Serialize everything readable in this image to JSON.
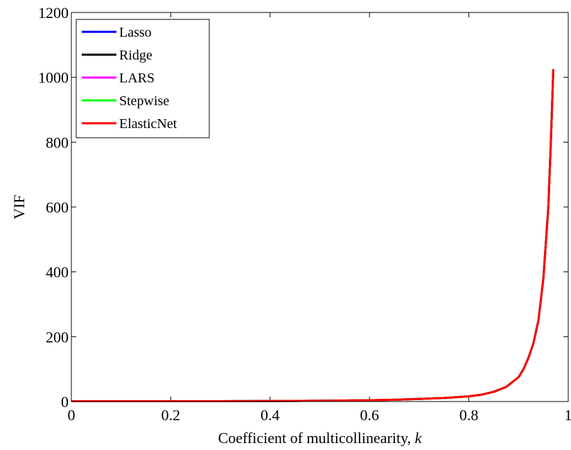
{
  "chart_data": {
    "type": "line",
    "title": "",
    "xlabel": "Coefficient of multicollinearity,",
    "xlabel_var": "k",
    "ylabel": "VIF",
    "xlim": [
      0,
      1
    ],
    "ylim": [
      0,
      1200
    ],
    "x_ticks": [
      0,
      0.2,
      0.4,
      0.6,
      0.8,
      1
    ],
    "x_tick_labels": [
      "0",
      "0.2",
      "0.4",
      "0.6",
      "0.8",
      "1"
    ],
    "y_ticks": [
      0,
      200,
      400,
      600,
      800,
      1000,
      1200
    ],
    "y_tick_labels": [
      "0",
      "200",
      "400",
      "600",
      "800",
      "1000",
      "1200"
    ],
    "grid": false,
    "legend_position": "top-left",
    "series": [
      {
        "name": "Lasso",
        "color": "#0000ff"
      },
      {
        "name": "Ridge",
        "color": "#000000"
      },
      {
        "name": "LARS",
        "color": "#ff00ff"
      },
      {
        "name": "Stepwise",
        "color": "#00ff00"
      },
      {
        "name": "ElasticNet",
        "color": "#ff0000"
      }
    ],
    "x": [
      0,
      0.1,
      0.2,
      0.3,
      0.4,
      0.5,
      0.6,
      0.65,
      0.7,
      0.75,
      0.8,
      0.825,
      0.85,
      0.875,
      0.9,
      0.91,
      0.92,
      0.93,
      0.94,
      0.95,
      0.96,
      0.965,
      0.97
    ],
    "values": [
      1,
      1,
      1,
      1.2,
      1.6,
      2.4,
      4,
      5.5,
      8,
      11,
      16,
      21,
      30,
      45,
      75,
      100,
      135,
      180,
      250,
      380,
      600,
      800,
      1025
    ]
  }
}
